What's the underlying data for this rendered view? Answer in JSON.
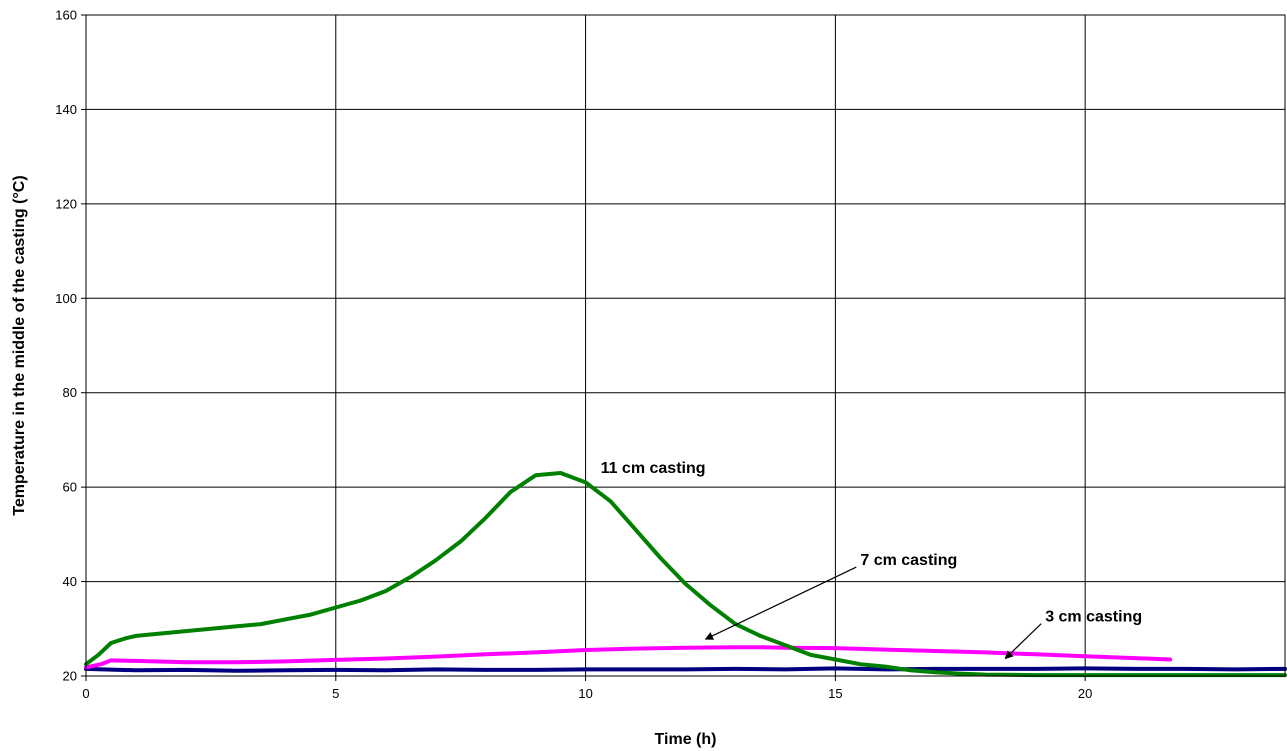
{
  "chart_data": {
    "type": "line",
    "title": "",
    "xlabel": "Time (h)",
    "ylabel": "Temperature in the middle of the casting (°C)",
    "xlim": [
      0,
      24
    ],
    "ylim": [
      20,
      160
    ],
    "xticks": [
      0,
      5,
      10,
      15,
      20
    ],
    "yticks": [
      20,
      40,
      60,
      80,
      100,
      120,
      140,
      160
    ],
    "grid": true,
    "legend": "none",
    "series": [
      {
        "name": "11 cm casting",
        "color": "#008000",
        "x": [
          0,
          0.25,
          0.5,
          0.8,
          1.0,
          1.5,
          2.0,
          2.5,
          3.0,
          3.5,
          4.0,
          4.5,
          5.0,
          5.5,
          6.0,
          6.5,
          7.0,
          7.5,
          8.0,
          8.5,
          9.0,
          9.5,
          10.0,
          10.5,
          11.0,
          11.5,
          12.0,
          12.5,
          13.0,
          13.5,
          14.0,
          14.5,
          15.0,
          15.5,
          16.0,
          16.5,
          17.0,
          17.5,
          18.0,
          19.0,
          20.0,
          21.0,
          22.0,
          23.0,
          24.0
        ],
        "y": [
          22.5,
          24.5,
          27,
          28,
          28.5,
          29,
          29.5,
          30,
          30.5,
          31,
          32,
          33,
          34.5,
          36,
          38,
          41,
          44.5,
          48.5,
          53.5,
          59,
          62.5,
          63,
          61,
          57,
          51,
          45,
          39.5,
          35,
          31,
          28.5,
          26.5,
          24.5,
          23.5,
          22.5,
          22,
          21.2,
          20.8,
          20.5,
          20.3,
          20.2,
          20.2,
          20.2,
          20.2,
          20.2,
          20.2
        ]
      },
      {
        "name": "7 cm casting",
        "color": "#ff00ff",
        "x": [
          0,
          0.3,
          0.5,
          1.0,
          2.0,
          3.0,
          4.0,
          5.0,
          6.0,
          7.0,
          8.0,
          9.0,
          10.0,
          11.0,
          12.0,
          13.0,
          13.5,
          14.0,
          15.0,
          16.0,
          17.0,
          18.0,
          19.0,
          20.0,
          21.0,
          21.7
        ],
        "y": [
          21.8,
          22.5,
          23.3,
          23.2,
          22.9,
          22.9,
          23.1,
          23.4,
          23.7,
          24.1,
          24.6,
          25.0,
          25.5,
          25.8,
          26.0,
          26.1,
          26.1,
          26.0,
          25.9,
          25.6,
          25.3,
          25.0,
          24.6,
          24.2,
          23.8,
          23.5
        ]
      },
      {
        "name": "3 cm casting",
        "color": "#000080",
        "x": [
          0,
          1,
          2,
          3,
          4,
          5,
          6,
          7,
          8,
          9,
          10,
          11,
          12,
          13,
          14,
          15,
          16,
          17,
          18,
          19,
          20,
          21,
          22,
          23,
          24
        ],
        "y": [
          21.5,
          21.2,
          21.3,
          21.1,
          21.2,
          21.3,
          21.2,
          21.4,
          21.3,
          21.3,
          21.4,
          21.4,
          21.4,
          21.5,
          21.4,
          21.6,
          21.4,
          21.5,
          21.5,
          21.5,
          21.6,
          21.5,
          21.5,
          21.4,
          21.5
        ]
      }
    ],
    "annotations": [
      {
        "text": "11 cm casting",
        "x": 10.3,
        "y": 63
      },
      {
        "text": "7 cm casting",
        "x": 15.5,
        "y": 43.5,
        "arrow_to": [
          12.4,
          27.8
        ]
      },
      {
        "text": "3 cm casting",
        "x": 19.2,
        "y": 31.5,
        "arrow_to": [
          18.4,
          23.7
        ]
      }
    ]
  }
}
